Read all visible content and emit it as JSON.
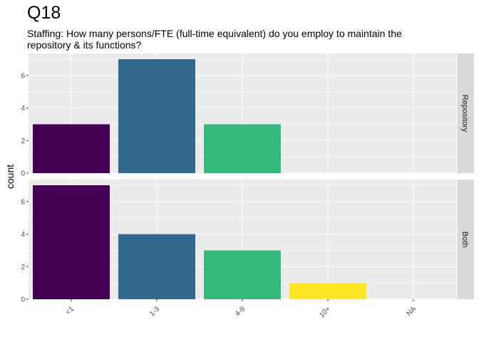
{
  "chart_data": {
    "type": "bar",
    "title": "Q18",
    "subtitle": "Staffing: How many persons/FTE (full-time equivalent) do you employ to maintain the repository & its functions?",
    "xlabel": "",
    "ylabel": "count",
    "categories": [
      "<1",
      "1-3",
      "4-9",
      "10+",
      "NA"
    ],
    "ylim": [
      0,
      7.35
    ],
    "yticks": [
      0,
      2,
      4,
      6
    ],
    "colors": [
      "#440154",
      "#31688E",
      "#35B779",
      "#FDE725",
      "#FDE725"
    ],
    "grid": true,
    "panel_background": "#EBEBEB",
    "strip_background": "#D9D9D9",
    "facets": [
      {
        "strip": "Repository",
        "values": [
          3,
          7,
          3,
          null,
          null
        ]
      },
      {
        "strip": "Both",
        "values": [
          7,
          4,
          3,
          1,
          null
        ]
      }
    ]
  }
}
